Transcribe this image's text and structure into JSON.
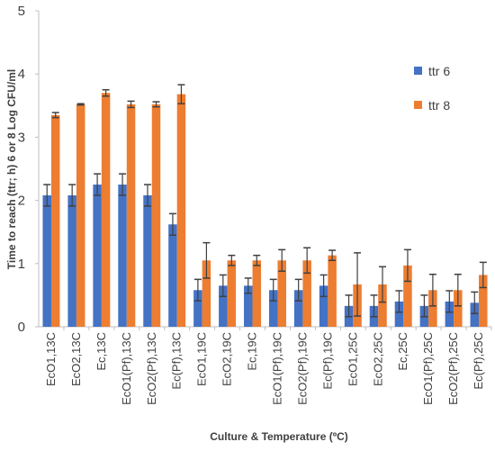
{
  "chart_data": {
    "type": "bar",
    "xlabel": "Culture & Temperature (ºC)",
    "ylabel": "Time to reach (ttr; h) 6 or 8 Log CFU/ml",
    "ylim": [
      0,
      5
    ],
    "yticks": [
      0,
      1,
      2,
      3,
      4,
      5
    ],
    "grid": false,
    "legend_position": "right",
    "categories": [
      "EcO1,13C",
      "EcO2,13C",
      "Ec,13C",
      "EcO1(Pf),13C",
      "EcO2(Pf),13C",
      "Ec(Pf),13C",
      "EcO1,19C",
      "EcO2,19C",
      "Ec,19C",
      "EcO1(Pf),19C",
      "EcO2(Pf),19C",
      "Ec(Pf),19C",
      "EcO1,25C",
      "EcO2,25C",
      "Ec,25C",
      "EcO1(Pf),25C",
      "EcO2(Pf),25C",
      "Ec(Pf),25C"
    ],
    "series": [
      {
        "name": "ttr 6",
        "color": "#4472C4",
        "values": [
          2.08,
          2.08,
          2.25,
          2.25,
          2.08,
          1.62,
          0.58,
          0.65,
          0.65,
          0.58,
          0.58,
          0.65,
          0.33,
          0.33,
          0.4,
          0.33,
          0.4,
          0.38
        ],
        "errors": [
          0.17,
          0.17,
          0.17,
          0.17,
          0.17,
          0.17,
          0.17,
          0.17,
          0.12,
          0.17,
          0.17,
          0.17,
          0.17,
          0.17,
          0.17,
          0.17,
          0.17,
          0.17
        ]
      },
      {
        "name": "ttr 8",
        "color": "#ED7D31",
        "values": [
          3.35,
          3.52,
          3.7,
          3.52,
          3.52,
          3.68,
          1.05,
          1.05,
          1.05,
          1.05,
          1.05,
          1.13,
          0.67,
          0.67,
          0.97,
          0.58,
          0.58,
          0.82
        ],
        "errors": [
          0.04,
          0.01,
          0.05,
          0.05,
          0.04,
          0.15,
          0.28,
          0.08,
          0.08,
          0.17,
          0.2,
          0.08,
          0.5,
          0.28,
          0.25,
          0.25,
          0.25,
          0.2
        ]
      }
    ]
  }
}
